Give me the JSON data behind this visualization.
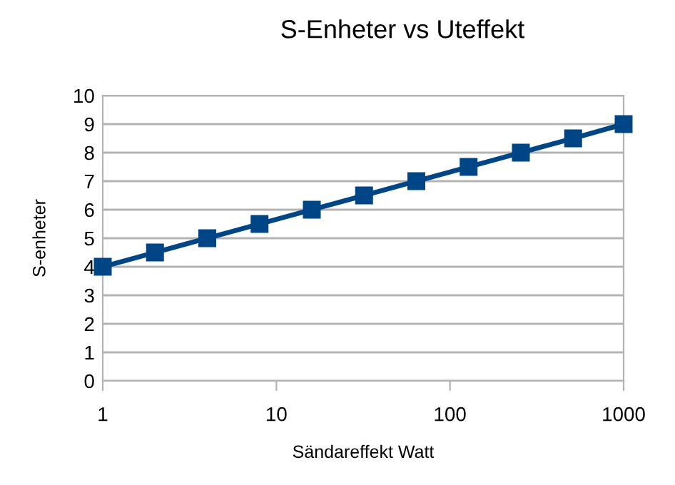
{
  "chart_data": {
    "type": "line",
    "title": "S-Enheter vs Uteffekt",
    "xlabel": "Sändareffekt Watt",
    "ylabel": "S-enheter",
    "x": [
      1,
      2,
      4,
      8,
      16,
      32,
      64,
      128,
      256,
      512,
      1000
    ],
    "series": [
      {
        "color": "#004586",
        "values": [
          4,
          4.5,
          5,
          5.5,
          6,
          6.5,
          7,
          7.5,
          8,
          8.5,
          9
        ]
      }
    ],
    "log": "x",
    "xlim": [
      1,
      1000
    ],
    "xticks": [
      1,
      10,
      100,
      1000
    ],
    "ylim": [
      0,
      10
    ],
    "yticks": [
      0,
      1,
      2,
      3,
      4,
      5,
      6,
      7,
      8,
      9,
      10
    ],
    "grid": "y",
    "marker": "square",
    "line_style": "solid"
  }
}
